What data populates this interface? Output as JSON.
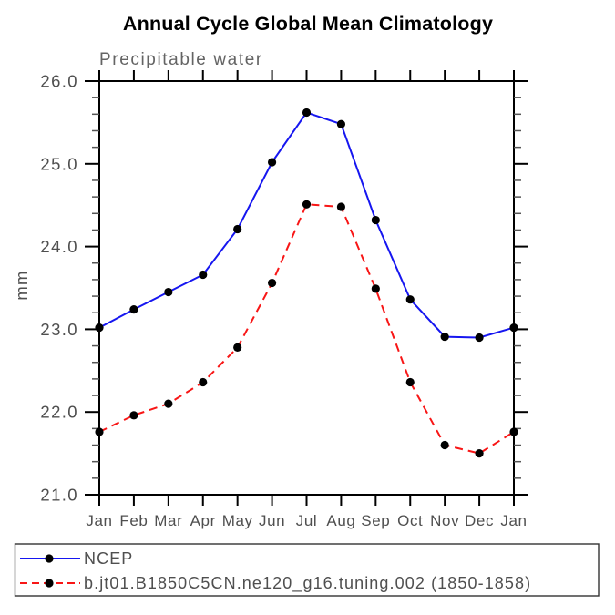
{
  "title": "Annual Cycle Global Mean Climatology",
  "chart_data": {
    "type": "line",
    "title": "Annual Cycle Global Mean Climatology",
    "subtitle": "Precipitable water",
    "ylabel": "mm",
    "xlabel": "",
    "categories": [
      "Jan",
      "Feb",
      "Mar",
      "Apr",
      "May",
      "Jun",
      "Jul",
      "Aug",
      "Sep",
      "Oct",
      "Nov",
      "Dec",
      "Jan"
    ],
    "ylim": [
      21.0,
      26.0
    ],
    "ytick_major": 1.0,
    "ytick_minor": 0.2,
    "yticks": [
      21.0,
      22.0,
      23.0,
      24.0,
      25.0,
      26.0
    ],
    "ytick_labels": [
      "21.0",
      "22.0",
      "23.0",
      "24.0",
      "25.0",
      "26.0"
    ],
    "grid": false,
    "tick_direction": "outward",
    "legend_position": "bottom-left-box",
    "series": [
      {
        "name": "NCEP",
        "color": "#1616f0",
        "style": "solid",
        "marker": "dot",
        "marker_color": "#000000",
        "values": [
          23.02,
          23.24,
          23.45,
          23.66,
          24.21,
          25.02,
          25.62,
          25.48,
          24.32,
          23.36,
          22.91,
          22.9,
          23.02
        ]
      },
      {
        "name": "b.jt01.B1850C5CN.ne120_g16.tuning.002 (1850-1858)",
        "color": "#f81616",
        "style": "dashed",
        "marker": "dot",
        "marker_color": "#000000",
        "values": [
          21.76,
          21.96,
          22.1,
          22.36,
          22.78,
          23.56,
          24.51,
          24.48,
          23.49,
          22.36,
          21.6,
          21.5,
          21.76
        ]
      }
    ]
  }
}
